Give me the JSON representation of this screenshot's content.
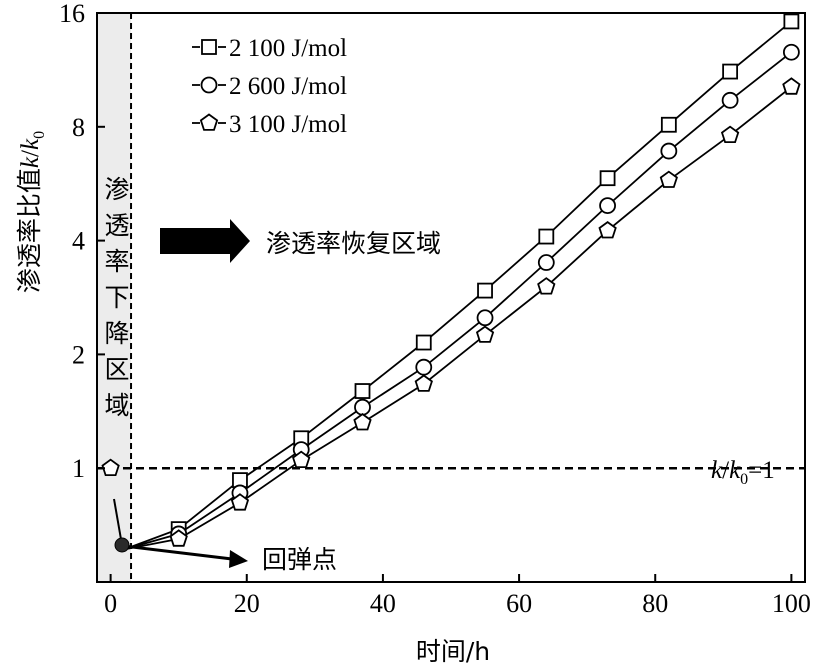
{
  "chart_data": {
    "type": "line",
    "xlabel": "时间/h",
    "ylabel_prefix": "渗透率比值",
    "ylabel_k": "k",
    "ylabel_slash": "/",
    "ylabel_k0_base": "k",
    "ylabel_k0_sub": "0",
    "x_ticks": [
      "0",
      "20",
      "40",
      "60",
      "80",
      "100"
    ],
    "x_tick_values": [
      0,
      20,
      40,
      60,
      80,
      100
    ],
    "y_ticks": [
      "1",
      "2",
      "4",
      "8",
      "16"
    ],
    "y_tick_values": [
      1,
      2,
      4,
      8,
      16
    ],
    "xlim": [
      -2,
      102
    ],
    "ylim": [
      0.5,
      16
    ],
    "y_scale": "log",
    "legend_position": "top-left",
    "series": [
      {
        "name": "2 100 J/mol",
        "marker": "square",
        "x": [
          0,
          2,
          10,
          19,
          28,
          37,
          46,
          55,
          64,
          73,
          82,
          91,
          100
        ],
        "y": [
          1.0,
          0.61,
          0.69,
          0.93,
          1.2,
          1.6,
          2.15,
          2.95,
          4.1,
          5.85,
          8.1,
          11.2,
          15.2
        ]
      },
      {
        "name": "2 600 J/mol",
        "marker": "circle",
        "x": [
          0,
          2,
          10,
          19,
          28,
          37,
          46,
          55,
          64,
          73,
          82,
          91,
          100
        ],
        "y": [
          1.0,
          0.61,
          0.67,
          0.86,
          1.12,
          1.45,
          1.85,
          2.5,
          3.5,
          4.95,
          6.9,
          9.4,
          12.6
        ]
      },
      {
        "name": "3 100 J/mol",
        "marker": "pentagon",
        "x": [
          0,
          2,
          10,
          19,
          28,
          37,
          46,
          55,
          64,
          73,
          82,
          91,
          100
        ],
        "y": [
          1.0,
          0.61,
          0.65,
          0.81,
          1.05,
          1.32,
          1.67,
          2.25,
          3.02,
          4.25,
          5.78,
          7.6,
          10.2
        ]
      }
    ],
    "reference_line": {
      "y": 1,
      "label_k": "k",
      "label_slash": "/",
      "label_k0": "k",
      "label_sub": "0",
      "label_rest": "=1"
    },
    "decline_boundary_x": 3,
    "decline_region_label": [
      "渗",
      "透",
      "率",
      "下",
      "降",
      "区",
      "域"
    ],
    "recovery_label": "渗透率恢复区域",
    "rebound_label": "回弹点",
    "rebound_point": {
      "x": 2,
      "y": 0.61
    }
  }
}
